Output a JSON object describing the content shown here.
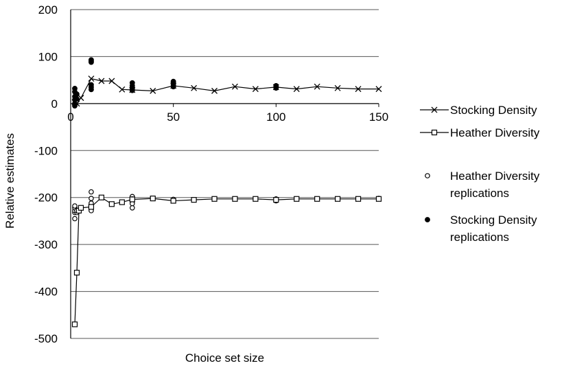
{
  "chart_data": {
    "type": "scatter",
    "xlabel": "Choice set size",
    "ylabel": "Relative estimates",
    "xlim": [
      0,
      150
    ],
    "ylim": [
      -500,
      200
    ],
    "x_ticks": [
      "0",
      "50",
      "100",
      "150"
    ],
    "y_ticks": [
      "200",
      "100",
      "0",
      "-100",
      "-200",
      "-300",
      "-400",
      "-500"
    ],
    "grid": "horizontal",
    "legend_position": "right",
    "series": [
      {
        "name": "Stocking Density",
        "kind": "line",
        "marker": "x",
        "x": [
          2,
          3,
          5,
          10,
          15,
          20,
          25,
          30,
          40,
          50,
          60,
          70,
          80,
          90,
          100,
          110,
          120,
          130,
          140,
          150
        ],
        "values": [
          3,
          0,
          12,
          53,
          48,
          48,
          30,
          29,
          27,
          38,
          33,
          27,
          36,
          31,
          35,
          31,
          36,
          33,
          31,
          31
        ]
      },
      {
        "name": "Heather Diversity",
        "kind": "line",
        "marker": "square",
        "x": [
          2,
          3,
          4,
          5,
          10,
          15,
          20,
          25,
          30,
          40,
          50,
          60,
          70,
          80,
          90,
          100,
          110,
          120,
          130,
          140,
          150
        ],
        "values": [
          -470,
          -360,
          -228,
          -222,
          -220,
          -200,
          -214,
          -210,
          -204,
          -202,
          -207,
          -205,
          -203,
          -203,
          -203,
          -205,
          -203,
          -203,
          -203,
          -203,
          -203
        ]
      },
      {
        "name": "Heather Diversity replications",
        "kind": "points",
        "marker": "open-circle",
        "x": [
          2,
          2,
          2,
          2,
          2,
          3,
          3,
          10,
          10,
          10,
          10,
          10,
          30,
          30,
          30,
          30,
          30,
          50,
          50,
          100,
          100,
          150
        ],
        "values": [
          -245,
          -232,
          -228,
          -222,
          -218,
          -232,
          -228,
          -188,
          -202,
          -212,
          -220,
          -228,
          -198,
          -203,
          -208,
          -213,
          -222,
          -204,
          -207,
          -203,
          -207,
          -202
        ]
      },
      {
        "name": "Stocking Density replications",
        "kind": "points",
        "marker": "filled-circle",
        "x": [
          2,
          2,
          2,
          2,
          2,
          2,
          3,
          3,
          10,
          10,
          10,
          10,
          10,
          10,
          30,
          30,
          30,
          30,
          50,
          50,
          50,
          50,
          100,
          100,
          100
        ],
        "values": [
          -5,
          0,
          8,
          15,
          25,
          32,
          10,
          20,
          88,
          90,
          93,
          30,
          35,
          40,
          28,
          32,
          38,
          44,
          36,
          40,
          44,
          47,
          33,
          36,
          38
        ]
      }
    ]
  },
  "legend": [
    {
      "label_lines": [
        "Stocking Density"
      ],
      "symbol": "x-line"
    },
    {
      "label_lines": [
        "Heather Diversity"
      ],
      "symbol": "square-line"
    },
    {
      "label_lines": [
        "Heather Diversity",
        "replications"
      ],
      "symbol": "open-circle"
    },
    {
      "label_lines": [
        "Stocking Density",
        "replications"
      ],
      "symbol": "filled-circle"
    }
  ]
}
